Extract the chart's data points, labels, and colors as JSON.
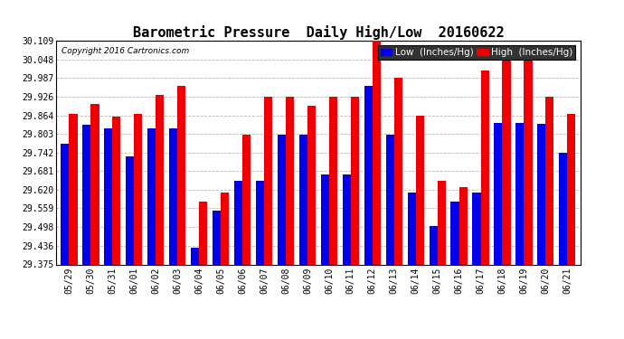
{
  "title": "Barometric Pressure  Daily High/Low  20160622",
  "copyright": "Copyright 2016 Cartronics.com",
  "legend_low": "Low  (Inches/Hg)",
  "legend_high": "High  (Inches/Hg)",
  "dates": [
    "05/29",
    "05/30",
    "05/31",
    "06/01",
    "06/02",
    "06/03",
    "06/04",
    "06/05",
    "06/06",
    "06/07",
    "06/08",
    "06/09",
    "06/10",
    "06/11",
    "06/12",
    "06/13",
    "06/14",
    "06/15",
    "06/16",
    "06/17",
    "06/18",
    "06/19",
    "06/20",
    "06/21"
  ],
  "low_values": [
    29.771,
    29.832,
    29.82,
    29.73,
    29.82,
    29.82,
    29.43,
    29.55,
    29.65,
    29.65,
    29.8,
    29.8,
    29.67,
    29.67,
    29.96,
    29.8,
    29.61,
    29.5,
    29.58,
    29.61,
    29.84,
    29.84,
    29.835,
    29.742
  ],
  "high_values": [
    29.87,
    29.9,
    29.86,
    29.87,
    29.93,
    29.96,
    29.58,
    29.61,
    29.8,
    29.926,
    29.926,
    29.895,
    29.926,
    29.926,
    30.109,
    29.987,
    29.864,
    29.65,
    29.63,
    30.01,
    30.075,
    30.09,
    29.926,
    29.87
  ],
  "ylim": [
    29.375,
    30.109
  ],
  "yticks": [
    29.375,
    29.436,
    29.498,
    29.559,
    29.62,
    29.681,
    29.742,
    29.803,
    29.864,
    29.926,
    29.987,
    30.048,
    30.109
  ],
  "low_color": "#0000ee",
  "high_color": "#ee0000",
  "bg_color": "#ffffff",
  "plot_bg_color": "#ffffff",
  "grid_color": "#999999",
  "bar_width": 0.38,
  "title_fontsize": 11,
  "tick_fontsize": 7,
  "legend_fontsize": 7.5
}
